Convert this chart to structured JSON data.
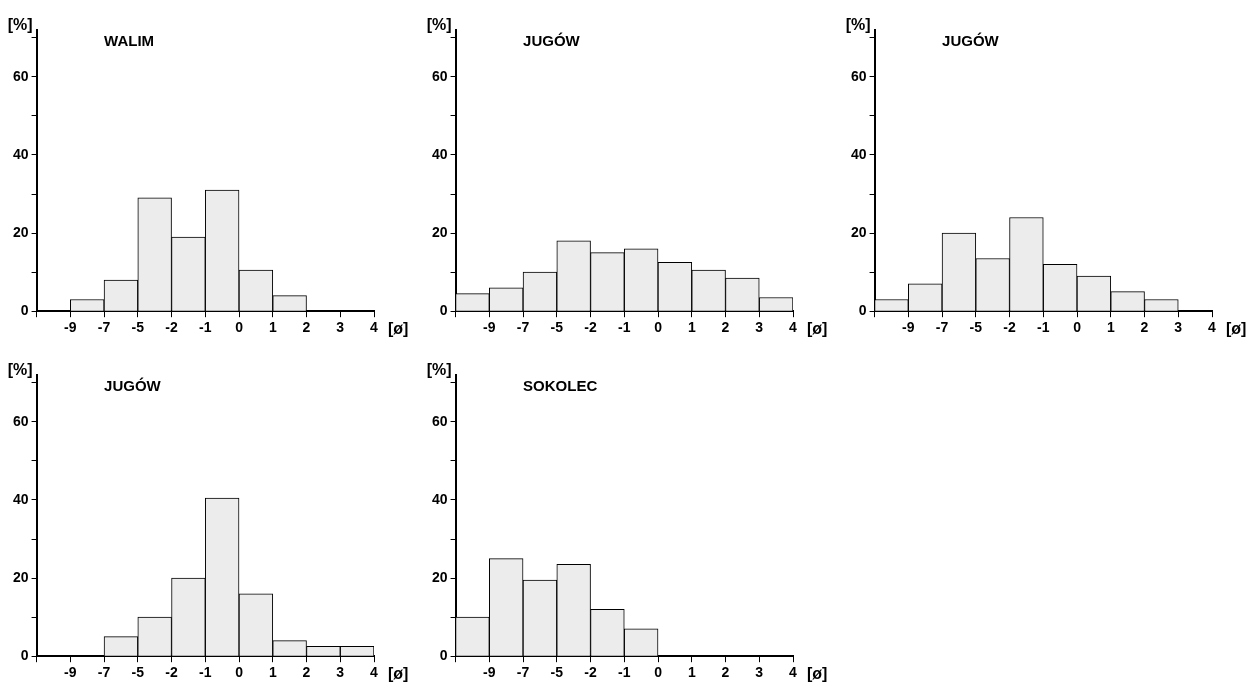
{
  "chart_data": [
    {
      "type": "bar",
      "title": "WALIM",
      "xlabel": "[ø]",
      "ylabel": "[%]",
      "categories": [
        "-9",
        "-7",
        "-5",
        "-2",
        "-1",
        "0",
        "1",
        "2",
        "3",
        "4"
      ],
      "values": [
        0,
        3,
        8,
        29,
        19,
        31,
        10.5,
        4,
        0,
        0
      ],
      "color": "#ececec",
      "ylim": [
        0,
        72
      ],
      "yticks": [
        0,
        {
          "value": 10,
          "label": null
        },
        20,
        {
          "value": 30,
          "label": null
        },
        40,
        {
          "value": 50,
          "label": null
        },
        60,
        {
          "value": 70,
          "label": null
        }
      ],
      "grid": false,
      "legend": false
    },
    {
      "type": "bar",
      "title": "JUGÓW",
      "xlabel": "[ø]",
      "ylabel": "[%]",
      "categories": [
        "-9",
        "-7",
        "-5",
        "-2",
        "-1",
        "0",
        "1",
        "2",
        "3",
        "4"
      ],
      "values": [
        4.5,
        6,
        10,
        18,
        15,
        16,
        12.5,
        10.5,
        8.5,
        3.5
      ],
      "color": "#ececec",
      "ylim": [
        0,
        72
      ],
      "yticks": [
        0,
        {
          "value": 10,
          "label": null
        },
        20,
        {
          "value": 30,
          "label": null
        },
        40,
        {
          "value": 50,
          "label": null
        },
        60,
        {
          "value": 70,
          "label": null
        }
      ],
      "grid": false,
      "legend": false
    },
    {
      "type": "bar",
      "title": "JUGÓW",
      "xlabel": "[ø]",
      "ylabel": "[%]",
      "categories": [
        "-9",
        "-7",
        "-5",
        "-2",
        "-1",
        "0",
        "1",
        "2",
        "3",
        "4"
      ],
      "values": [
        3,
        7,
        20,
        13.5,
        24,
        12,
        9,
        5,
        3,
        0
      ],
      "color": "#ececec",
      "ylim": [
        0,
        72
      ],
      "yticks": [
        0,
        {
          "value": 10,
          "label": null
        },
        20,
        {
          "value": 30,
          "label": null
        },
        40,
        {
          "value": 50,
          "label": null
        },
        60,
        {
          "value": 70,
          "label": null
        }
      ],
      "grid": false,
      "legend": false
    },
    {
      "type": "bar",
      "title": "JUGÓW",
      "xlabel": "[ø]",
      "ylabel": "[%]",
      "categories": [
        "-9",
        "-7",
        "-5",
        "-2",
        "-1",
        "0",
        "1",
        "2",
        "3",
        "4"
      ],
      "values": [
        0,
        0,
        5,
        10,
        20,
        40.5,
        16,
        4,
        2.5,
        2.5
      ],
      "color": "#ececec",
      "ylim": [
        0,
        72
      ],
      "yticks": [
        0,
        {
          "value": 10,
          "label": null
        },
        20,
        {
          "value": 30,
          "label": null
        },
        40,
        {
          "value": 50,
          "label": null
        },
        60,
        {
          "value": 70,
          "label": null
        }
      ],
      "grid": false,
      "legend": false
    },
    {
      "type": "bar",
      "title": "SOKOLEC",
      "xlabel": "[ø]",
      "ylabel": "[%]",
      "categories": [
        "-9",
        "-7",
        "-5",
        "-2",
        "-1",
        "0",
        "1",
        "2",
        "3",
        "4"
      ],
      "values": [
        10,
        25,
        19.5,
        23.5,
        12,
        7,
        0,
        0,
        0,
        0
      ],
      "color": "#ececec",
      "ylim": [
        0,
        72
      ],
      "yticks": [
        0,
        {
          "value": 10,
          "label": null
        },
        20,
        {
          "value": 30,
          "label": null
        },
        40,
        {
          "value": 50,
          "label": null
        },
        60,
        {
          "value": 70,
          "label": null
        }
      ],
      "grid": false,
      "legend": false
    }
  ]
}
